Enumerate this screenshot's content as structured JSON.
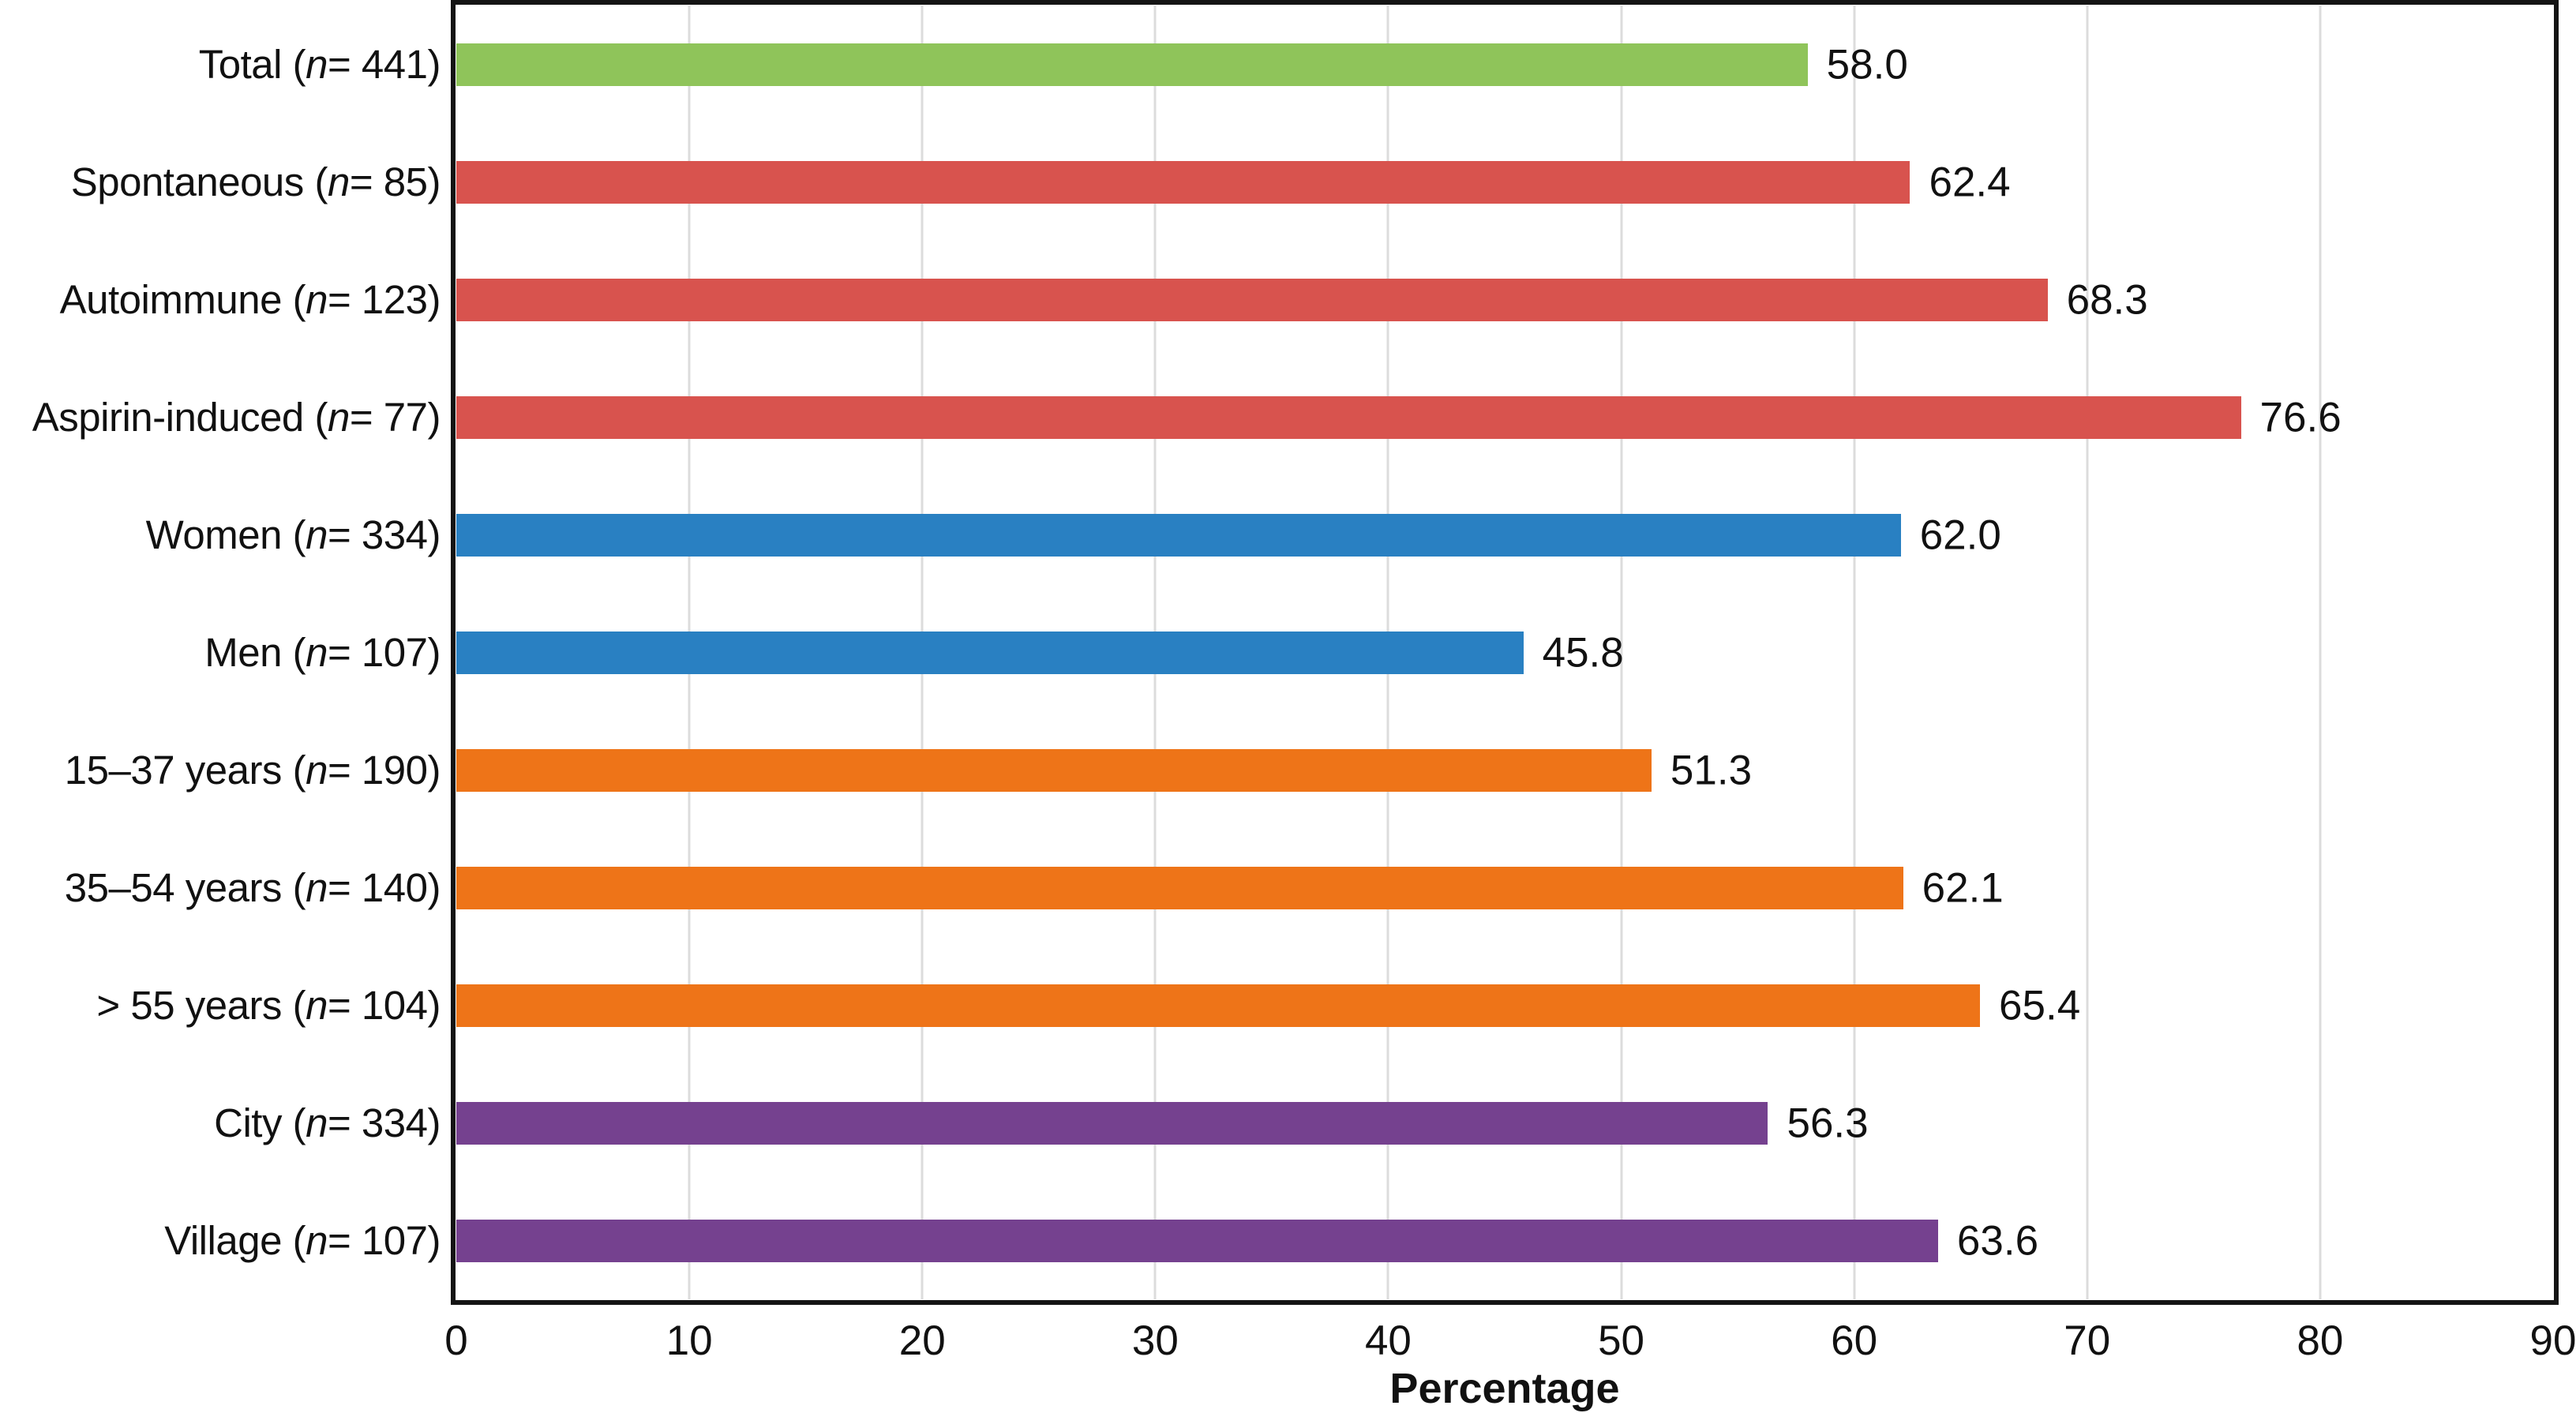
{
  "chart_data": {
    "type": "bar",
    "orientation": "horizontal",
    "title": "",
    "xlabel": "Percentage",
    "ylabel": "",
    "xlim": [
      0,
      90
    ],
    "x_ticks": [
      0,
      10,
      20,
      30,
      40,
      50,
      60,
      70,
      80,
      90
    ],
    "x_tick_labels": [
      "0",
      "10",
      "20",
      "30",
      "40",
      "50",
      "60",
      "70",
      "80",
      "90"
    ],
    "grid": "vertical light-gray gridlines at each tick, black frame around plot",
    "legend": "none",
    "categories": [
      "Total (n = 441)",
      "Spontaneous (n = 85)",
      "Autoimmune (n = 123)",
      "Aspirin-induced (n = 77)",
      "Women (n = 334)",
      "Men (n = 107)",
      "15–37 years (n = 190)",
      "35–54 years (n = 140)",
      "> 55 years (n = 104)",
      "City (n = 334)",
      "Village (n = 107)"
    ],
    "values": [
      58.0,
      62.4,
      68.3,
      76.6,
      62.0,
      45.8,
      51.3,
      62.1,
      65.4,
      56.3,
      63.6
    ],
    "bars": [
      {
        "label_prefix": "Total (",
        "n_var": "n",
        "label_suffix": " = 441)",
        "value": 58.0,
        "value_label": "58.0",
        "color": "#8fc45a",
        "group": "total"
      },
      {
        "label_prefix": "Spontaneous (",
        "n_var": "n",
        "label_suffix": " = 85)",
        "value": 62.4,
        "value_label": "62.4",
        "color": "#d8534e",
        "group": "urticaria-type"
      },
      {
        "label_prefix": "Autoimmune (",
        "n_var": "n",
        "label_suffix": " = 123)",
        "value": 68.3,
        "value_label": "68.3",
        "color": "#d8534e",
        "group": "urticaria-type"
      },
      {
        "label_prefix": "Aspirin-induced (",
        "n_var": "n",
        "label_suffix": " = 77)",
        "value": 76.6,
        "value_label": "76.6",
        "color": "#d8534e",
        "group": "urticaria-type"
      },
      {
        "label_prefix": "Women (",
        "n_var": "n",
        "label_suffix": " = 334)",
        "value": 62.0,
        "value_label": "62.0",
        "color": "#2980c2",
        "group": "sex"
      },
      {
        "label_prefix": "Men (",
        "n_var": "n",
        "label_suffix": " = 107)",
        "value": 45.8,
        "value_label": "45.8",
        "color": "#2980c2",
        "group": "sex"
      },
      {
        "label_prefix": "15–37 years (",
        "n_var": "n",
        "label_suffix": " = 190)",
        "value": 51.3,
        "value_label": "51.3",
        "color": "#ee7418",
        "group": "age"
      },
      {
        "label_prefix": "35–54 years (",
        "n_var": "n",
        "label_suffix": " = 140)",
        "value": 62.1,
        "value_label": "62.1",
        "color": "#ee7418",
        "group": "age"
      },
      {
        "label_prefix": "> 55 years (",
        "n_var": "n",
        "label_suffix": " = 104)",
        "value": 65.4,
        "value_label": "65.4",
        "color": "#ee7418",
        "group": "age"
      },
      {
        "label_prefix": "City (",
        "n_var": "n",
        "label_suffix": " = 334)",
        "value": 56.3,
        "value_label": "56.3",
        "color": "#75418f",
        "group": "residence"
      },
      {
        "label_prefix": "Village (",
        "n_var": "n",
        "label_suffix": " = 107)",
        "value": 63.6,
        "value_label": "63.6",
        "color": "#75418f",
        "group": "residence"
      }
    ],
    "colors": {
      "total": "#8fc45a",
      "urticaria_type": "#d8534e",
      "sex": "#2980c2",
      "age": "#ee7418",
      "residence": "#75418f",
      "gridline": "#dcdcdc",
      "frame": "#141414",
      "text": "#111111"
    }
  }
}
